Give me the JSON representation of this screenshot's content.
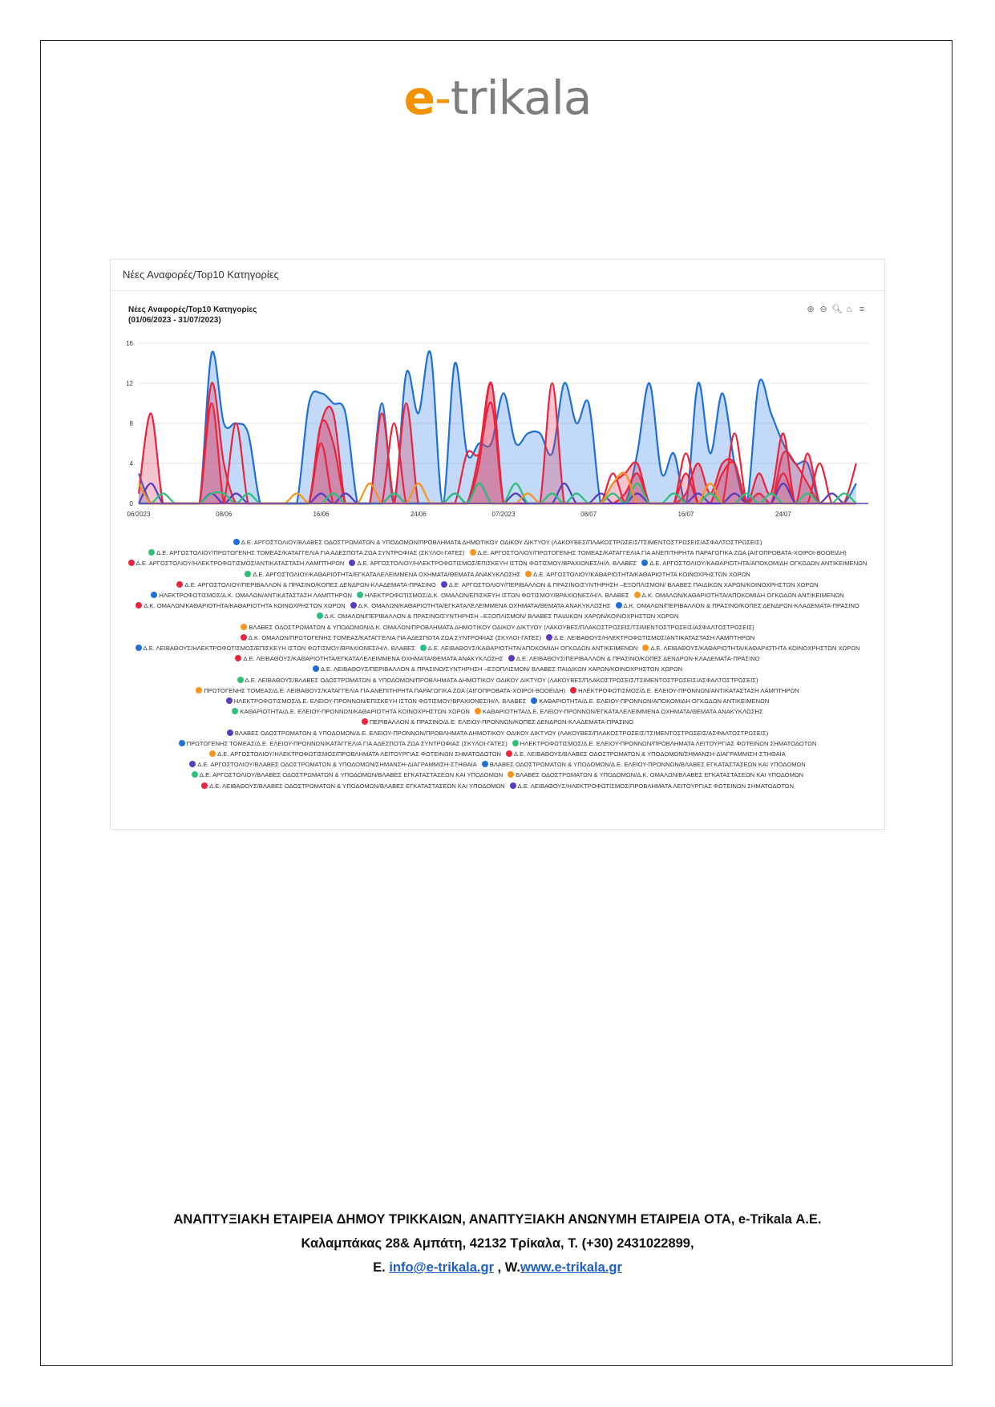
{
  "logo": {
    "e": "e",
    "dash": "-",
    "rest": "trikala"
  },
  "card": {
    "header": "Νέες Αναφορές/Top10 Κατηγορίες"
  },
  "chart_title": {
    "line1": "Νέες Αναφορές/Top10 Κατηγορίες",
    "line2": "(01/06/2023 - 31/07/2023)"
  },
  "toolbar": [
    "zoom-in-icon",
    "zoom-out-icon",
    "zoom-select-icon",
    "home-icon",
    "menu-icon"
  ],
  "colors": {
    "blue": "#1f6fd6",
    "red": "#e8253d",
    "green": "#2ec07a",
    "orange": "#f7941d",
    "purple": "#5b3bbf"
  },
  "chart_data": {
    "type": "area",
    "title": "Νέες Αναφορές/Top10 Κατηγορίες",
    "subtitle": "(01/06/2023 - 31/07/2023)",
    "ylim": [
      0,
      16
    ],
    "yticks": [
      "0",
      "4",
      "8",
      "12",
      "16"
    ],
    "xtick_labels": [
      {
        "day": 0,
        "label": "06/2023"
      },
      {
        "day": 7,
        "label": "08/06"
      },
      {
        "day": 15,
        "label": "16/06"
      },
      {
        "day": 23,
        "label": "24/06"
      },
      {
        "day": 30,
        "label": "07/2023"
      },
      {
        "day": 37,
        "label": "08/07"
      },
      {
        "day": 45,
        "label": "16/07"
      },
      {
        "day": 53,
        "label": "24/07"
      }
    ],
    "xlim_days": [
      0,
      60
    ],
    "grid": true,
    "legend_position": "bottom",
    "series": [
      {
        "color": "blue",
        "fill": true,
        "values": [
          3,
          0,
          0,
          0,
          0,
          0,
          15,
          8,
          8,
          7,
          0,
          0,
          0,
          0,
          10,
          11,
          10,
          9,
          0,
          0,
          10,
          0,
          13,
          9,
          15,
          0,
          14,
          5,
          6,
          6,
          11,
          6,
          7,
          7,
          5,
          12,
          8,
          10,
          0,
          0,
          0,
          5,
          12,
          3,
          5,
          0,
          12,
          5,
          11,
          4,
          0,
          12,
          9,
          6,
          4,
          4,
          0,
          0,
          0,
          2
        ]
      },
      {
        "color": "red",
        "fill": true,
        "values": [
          1,
          9,
          0,
          0,
          0,
          0,
          12,
          4,
          0,
          0,
          0,
          0,
          0,
          0,
          0,
          8,
          9,
          0,
          0,
          0,
          0,
          0,
          10,
          0,
          0,
          0,
          0,
          0,
          5,
          12,
          0,
          0,
          0,
          0,
          12,
          0,
          0,
          0,
          0,
          2,
          3,
          4,
          0,
          0,
          0,
          1,
          4,
          1,
          4,
          4,
          0,
          1,
          0,
          5,
          4,
          2,
          0,
          0,
          0,
          0
        ]
      },
      {
        "color": "red",
        "fill": true,
        "values": [
          0,
          0,
          0,
          0,
          0,
          0,
          10,
          0,
          0,
          0,
          0,
          0,
          0,
          0,
          0,
          8,
          6,
          0,
          0,
          0,
          9,
          0,
          0,
          0,
          0,
          0,
          0,
          0,
          4,
          12,
          0,
          0,
          0,
          0,
          0,
          0,
          0,
          0,
          0,
          0,
          1,
          3,
          0,
          0,
          0,
          3,
          0,
          0,
          3,
          4,
          0,
          3,
          1,
          7,
          0,
          5,
          0,
          0,
          0,
          0
        ]
      },
      {
        "color": "red",
        "fill": false,
        "values": [
          0,
          0,
          0,
          0,
          0,
          0,
          0,
          0,
          8,
          0,
          0,
          0,
          0,
          0,
          0,
          6,
          0,
          0,
          0,
          0,
          0,
          8,
          0,
          0,
          0,
          0,
          0,
          5,
          5,
          10,
          0,
          0,
          0,
          0,
          0,
          0,
          0,
          0,
          0,
          3,
          0,
          0,
          0,
          0,
          0,
          5,
          0,
          0,
          0,
          7,
          0,
          0,
          0,
          3,
          0,
          0,
          4,
          0,
          0,
          4
        ]
      },
      {
        "color": "purple",
        "fill": false,
        "values": [
          0,
          2,
          0,
          0,
          0,
          0,
          1,
          0,
          1,
          0,
          0,
          0,
          0,
          0,
          0,
          1,
          0,
          1,
          0,
          0,
          0,
          1,
          0,
          0,
          0,
          0,
          1,
          0,
          2,
          0,
          0,
          1,
          0,
          0,
          0,
          2,
          0,
          0,
          1,
          0,
          0,
          1,
          0,
          0,
          0,
          0,
          1,
          0,
          0,
          1,
          0,
          0,
          0,
          2,
          0,
          0,
          0,
          1,
          0,
          0
        ]
      },
      {
        "color": "green",
        "fill": false,
        "values": [
          0,
          0,
          1,
          0,
          0,
          0,
          1,
          1,
          0,
          1,
          0,
          0,
          0,
          0,
          0,
          0,
          1,
          0,
          0,
          0,
          0,
          1,
          0,
          0,
          0,
          0,
          1,
          0,
          2,
          0,
          0,
          2,
          0,
          0,
          1,
          0,
          1,
          0,
          0,
          1,
          0,
          2,
          0,
          0,
          1,
          0,
          0,
          1,
          0,
          0,
          1,
          0,
          1,
          0,
          0,
          1,
          0,
          0,
          1,
          0
        ]
      },
      {
        "color": "orange",
        "fill": false,
        "values": [
          2,
          0,
          0,
          0,
          0,
          0,
          0,
          0,
          0,
          0,
          0,
          0,
          0,
          1,
          0,
          0,
          0,
          0,
          0,
          2,
          0,
          0,
          0,
          2,
          0,
          0,
          0,
          0,
          0,
          0,
          0,
          0,
          1,
          0,
          0,
          0,
          0,
          0,
          0,
          2,
          3,
          0,
          0,
          0,
          0,
          0,
          0,
          2,
          0,
          0,
          0,
          0,
          0,
          0,
          0,
          0,
          0,
          0,
          0,
          0
        ]
      }
    ],
    "legend_entries": [
      {
        "color": "blue",
        "label": "Δ.Ε. ΑΡΓΟΣΤΟΛΙΟΥ/ΒΛΑΒΕΣ ΟΔΟΣΤΡΩΜΑΤΩΝ & ΥΠΟΔΟΜΩΝ/ΠΡΟΒΛΗΜΑΤΑ ΔΗΜΟΤΙΚΟΥ ΟΔΙΚΟΥ ΔΙΚΤΥΟΥ (ΛΑΚΟΥΒΕΣ/ΠΛΑΚΟΣΤΡΩΣΕΙΣ/ΤΣΙΜΕΝΤΟΣΤΡΩΣΕΙΣ/ΑΣΦΑΛΤΟΣΤΡΩΣΕΙΣ)"
      },
      {
        "color": "green",
        "label": "Δ.Ε. ΑΡΓΟΣΤΟΛΙΟΥ/ΠΡΩΤΟΓΕΝΗΣ ΤΟΜΕΑΣ/ΚΑΤΑΓΓΕΛΙΑ ΓΙΑ ΑΔΕΣΠΟΤΑ ΖΩΑ ΣΥΝΤΡΟΦΙΑΣ (ΣΚΥΛΟΙ-ΓΑΤΕΣ)"
      },
      {
        "color": "orange",
        "label": "Δ.Ε. ΑΡΓΟΣΤΟΛΙΟΥ/ΠΡΩΤΟΓΕΝΗΣ ΤΟΜΕΑΣ/ΚΑΤΑΓΓΕΛΙΑ ΓΙΑ ΑΝΕΠΙΤΗΡΗΤΑ ΠΑΡΑΓΩΓΙΚΑ ΖΩΑ (ΑΙΓΟΠΡΟΒΑΤΑ-ΧΟΙΡΟΙ-ΒΟΟΕΙΔΗ)"
      },
      {
        "color": "red",
        "label": "Δ.Ε. ΑΡΓΟΣΤΟΛΙΟΥ/ΗΛΕΚΤΡΟΦΩΤΙΣΜΟΣ/ΑΝΤΙΚΑΤΑΣΤΑΣΗ ΛΑΜΠΤΗΡΩΝ"
      },
      {
        "color": "purple",
        "label": "Δ.Ε. ΑΡΓΟΣΤΟΛΙΟΥ/ΗΛΕΚΤΡΟΦΩΤΙΣΜΟΣ/ΕΠΙΣΚΕΥΗ ΙΣΤΩΝ ΦΩΤΙΣΜΟΥ/ΒΡΑΧΙΟΝΕΣ/Η/Λ. ΒΛΑΒΕΣ"
      },
      {
        "color": "blue",
        "label": "Δ.Ε. ΑΡΓΟΣΤΟΛΙΟΥ/ΚΑΘΑΡΙΟΤΗΤΑ/ΑΠΟΚΟΜΙΔΗ ΟΓΚΩΔΩΝ ΑΝΤΙΚΕΙΜΕΝΩΝ"
      },
      {
        "color": "green",
        "label": "Δ.Ε. ΑΡΓΟΣΤΟΛΙΟΥ/ΚΑΘΑΡΙΟΤΗΤΑ/ΕΓΚΑΤΑΛΕΛΕΙΜΜΕΝΑ ΟΧΗΜΑΤΑ/ΘΕΜΑΤΑ ΑΝΑΚΥΚΛΩΣΗΣ"
      },
      {
        "color": "orange",
        "label": "Δ.Ε. ΑΡΓΟΣΤΟΛΙΟΥ/ΚΑΘΑΡΙΟΤΗΤΑ/ΚΑΘΑΡΙΟΤΗΤΑ ΚΟΙΝΟΧΡΗΣΤΩΝ ΧΩΡΩΝ"
      },
      {
        "color": "red",
        "label": "Δ.Ε. ΑΡΓΟΣΤΟΛΙΟΥ/ΠΕΡΙΒΑΛΛΟΝ & ΠΡΑΣΙΝΟ/ΚΟΠΕΣ ΔΕΝΔΡΩΝ-ΚΛΑΔΕΜΑΤΑ-ΠΡΑΣΙΝΟ"
      },
      {
        "color": "purple",
        "label": "Δ.Ε. ΑΡΓΟΣΤΟΛΙΟΥ/ΠΕΡΙΒΑΛΛΟΝ & ΠΡΑΣΙΝΟ/ΣΥΝΤΗΡΗΣΗ –ΕΞΟΠΛΙΣΜΟΝ/ ΒΛΑΒΕΣ ΠΑΙΔΙΚΩΝ ΧΑΡΩΝ/ΚΟΙΝΟΧΡΗΣΤΩΝ ΧΩΡΩΝ"
      },
      {
        "color": "blue",
        "label": "ΗΛΕΚΤΡΟΦΩΤΙΣΜΟΣ/Δ.Κ. ΟΜΑΛΩΝ/ΑΝΤΙΚΑΤΑΣΤΑΣΗ ΛΑΜΠΤΗΡΩΝ"
      },
      {
        "color": "green",
        "label": "ΗΛΕΚΤΡΟΦΩΤΙΣΜΟΣ/Δ.Κ. ΟΜΑΛΩΝ/ΕΠΙΣΚΕΥΗ ΙΣΤΩΝ ΦΩΤΙΣΜΟΥ/ΒΡΑΧΙΟΝΕΣ/Η/Λ. ΒΛΑΒΕΣ"
      },
      {
        "color": "orange",
        "label": "Δ.Κ. ΟΜΑΛΩΝ/ΚΑΘΑΡΙΟΤΗΤΑ/ΑΠΟΚΟΜΙΔΗ ΟΓΚΩΔΩΝ ΑΝΤΙΚΕΙΜΕΝΩΝ"
      },
      {
        "color": "red",
        "label": "Δ.Κ. ΟΜΑΛΩΝ/ΚΑΘΑΡΙΟΤΗΤΑ/ΚΑΘΑΡΙΟΤΗΤΑ ΚΟΙΝΟΧΡΗΣΤΩΝ ΧΩΡΩΝ"
      },
      {
        "color": "purple",
        "label": "Δ.Κ. ΟΜΑΛΩΝ/ΚΑΘΑΡΙΟΤΗΤΑ/ΕΓΚΑΤΑΛΕΛΕΙΜΜΕΝΑ ΟΧΗΜΑΤΑ/ΘΕΜΑΤΑ ΑΝΑΚΥΚΛΩΣΗΣ"
      },
      {
        "color": "blue",
        "label": "Δ.Κ. ΟΜΑΛΩΝ/ΠΕΡΙΒΑΛΛΟΝ & ΠΡΑΣΙΝΟ/ΚΟΠΕΣ ΔΕΝΔΡΩΝ-ΚΛΑΔΕΜΑΤΑ-ΠΡΑΣΙΝΟ"
      },
      {
        "color": "green",
        "label": "Δ.Κ. ΟΜΑΛΩΝ/ΠΕΡΙΒΑΛΛΟΝ & ΠΡΑΣΙΝΟ/ΣΥΝΤΗΡΗΣΗ –ΕΞΟΠΛΙΣΜΟΝ/ ΒΛΑΒΕΣ ΠΑΙΔΙΚΩΝ ΧΑΡΩΝ/ΚΟΙΝΟΧΡΗΣΤΩΝ ΧΩΡΩΝ"
      },
      {
        "color": "orange",
        "label": "ΒΛΑΒΕΣ ΟΔΟΣΤΡΩΜΑΤΩΝ & ΥΠΟΔΟΜΩΝ/Δ.Κ. ΟΜΑΛΩΝ/ΠΡΟΒΛΗΜΑΤΑ ΔΗΜΟΤΙΚΟΥ ΟΔΙΚΟΥ ΔΙΚΤΥΟΥ (ΛΑΚΟΥΒΕΣ/ΠΛΑΚΟΣΤΡΩΣΕΙΣ/ΤΣΙΜΕΝΤΟΣΤΡΩΣΕΙΣ/ΑΣΦΑΛΤΟΣΤΡΩΣΕΙΣ)"
      },
      {
        "color": "red",
        "label": "Δ.Κ. ΟΜΑΛΩΝ/ΠΡΩΤΟΓΕΝΗΣ ΤΟΜΕΑΣ/ΚΑΤΑΓΓΕΛΙΑ ΓΙΑ ΑΔΕΣΠΟΤΑ ΖΩΑ ΣΥΝΤΡΟΦΙΑΣ (ΣΚΥΛΟΙ-ΓΑΤΕΣ)"
      },
      {
        "color": "purple",
        "label": "Δ.Ε. ΛΕΙΒΑΘΟΥΣ/ΗΛΕΚΤΡΟΦΩΤΙΣΜΟΣ/ΑΝΤΙΚΑΤΑΣΤΑΣΗ ΛΑΜΠΤΗΡΩΝ"
      },
      {
        "color": "blue",
        "label": "Δ.Ε. ΛΕΙΒΑΘΟΥΣ/ΗΛΕΚΤΡΟΦΩΤΙΣΜΟΣ/ΕΠΙΣΚΕΥΗ ΙΣΤΩΝ ΦΩΤΙΣΜΟΥ/ΒΡΑΧΙΟΝΕΣ/Η/Λ. ΒΛΑΒΕΣ"
      },
      {
        "color": "green",
        "label": "Δ.Ε. ΛΕΙΒΑΘΟΥΣ/ΚΑΘΑΡΙΟΤΗΤΑ/ΑΠΟΚΟΜΙΔΗ ΟΓΚΩΔΩΝ ΑΝΤΙΚΕΙΜΕΝΩΝ"
      },
      {
        "color": "orange",
        "label": "Δ.Ε. ΛΕΙΒΑΘΟΥΣ/ΚΑΘΑΡΙΟΤΗΤΑ/ΚΑΘΑΡΙΟΤΗΤΑ ΚΟΙΝΟΧΡΗΣΤΩΝ ΧΩΡΩΝ"
      },
      {
        "color": "red",
        "label": "Δ.Ε. ΛΕΙΒΑΘΟΥΣ/ΚΑΘΑΡΙΟΤΗΤΑ/ΕΓΚΑΤΑΛΕΛΕΙΜΜΕΝΑ ΟΧΗΜΑΤΑ/ΘΕΜΑΤΑ ΑΝΑΚΥΚΛΩΣΗΣ"
      },
      {
        "color": "purple",
        "label": "Δ.Ε. ΛΕΙΒΑΘΟΥΣ/ΠΕΡΙΒΑΛΛΟΝ & ΠΡΑΣΙΝΟ/ΚΟΠΕΣ ΔΕΝΔΡΩΝ-ΚΛΑΔΕΜΑΤΑ-ΠΡΑΣΙΝΟ"
      },
      {
        "color": "blue",
        "label": "Δ.Ε. ΛΕΙΒΑΘΟΥΣ/ΠΕΡΙΒΑΛΛΟΝ & ΠΡΑΣΙΝΟ/ΣΥΝΤΗΡΗΣΗ –ΕΞΟΠΛΙΣΜΟΝ/ ΒΛΑΒΕΣ ΠΑΙΔΙΚΩΝ ΧΑΡΩΝ/ΚΟΙΝΟΧΡΗΣΤΩΝ ΧΩΡΩΝ"
      },
      {
        "color": "green",
        "label": "Δ.Ε. ΛΕΙΒΑΘΟΥΣ/ΒΛΑΒΕΣ ΟΔΟΣΤΡΩΜΑΤΩΝ & ΥΠΟΔΟΜΩΝ/ΠΡΟΒΛΗΜΑΤΑ ΔΗΜΟΤΙΚΟΥ ΟΔΙΚΟΥ ΔΙΚΤΥΟΥ (ΛΑΚΟΥΒΕΣ/ΠΛΑΚΟΣΤΡΩΣΕΙΣ/ΤΣΙΜΕΝΤΟΣΤΡΩΣΕΙΣ/ΑΣΦΑΛΤΟΣΤΡΩΣΕΙΣ)"
      },
      {
        "color": "orange",
        "label": "ΠΡΩΤΟΓΕΝΗΣ ΤΟΜΕΑΣ/Δ.Ε. ΛΕΙΒΑΘΟΥΣ/ΚΑΤΑΓΓΕΛΙΑ ΓΙΑ ΑΝΕΠΙΤΗΡΗΤΑ ΠΑΡΑΓΩΓΙΚΑ ΖΩΑ (ΑΙΓΟΠΡΟΒΑΤΑ-ΧΟΙΡΟΙ-ΒΟΟΕΙΔΗ)"
      },
      {
        "color": "red",
        "label": "ΗΛΕΚΤΡΟΦΩΤΙΣΜΟΣ/Δ.Ε. ΕΛΕΙΟΥ-ΠΡΟΝΝΩΝ/ΑΝΤΙΚΑΤΑΣΤΑΣΗ ΛΑΜΠΤΗΡΩΝ"
      },
      {
        "color": "purple",
        "label": "ΗΛΕΚΤΡΟΦΩΤΙΣΜΟΣ/Δ.Ε. ΕΛΕΙΟΥ-ΠΡΟΝΝΩΝ/ΕΠΙΣΚΕΥΗ ΙΣΤΩΝ ΦΩΤΙΣΜΟΥ/ΒΡΑΧΙΟΝΕΣ/Η/Λ. ΒΛΑΒΕΣ"
      },
      {
        "color": "blue",
        "label": "ΚΑΘΑΡΙΟΤΗΤΑ/Δ.Ε. ΕΛΕΙΟΥ-ΠΡΟΝΝΩΝ/ΑΠΟΚΟΜΙΔΗ ΟΓΚΩΔΩΝ ΑΝΤΙΚΕΙΜΕΝΩΝ"
      },
      {
        "color": "green",
        "label": "ΚΑΘΑΡΙΟΤΗΤΑ/Δ.Ε. ΕΛΕΙΟΥ-ΠΡΟΝΝΩΝ/ΚΑΘΑΡΙΟΤΗΤΑ ΚΟΙΝΟΧΡΗΣΤΩΝ ΧΩΡΩΝ"
      },
      {
        "color": "orange",
        "label": "ΚΑΘΑΡΙΟΤΗΤΑ/Δ.Ε. ΕΛΕΙΟΥ-ΠΡΟΝΝΩΝ/ΕΓΚΑΤΑΛΕΛΕΙΜΜΕΝΑ ΟΧΗΜΑΤΑ/ΘΕΜΑΤΑ ΑΝΑΚΥΚΛΩΣΗΣ"
      },
      {
        "color": "red",
        "label": "ΠΕΡΙΒΑΛΛΟΝ & ΠΡΑΣΙΝΟ/Δ.Ε. ΕΛΕΙΟΥ-ΠΡΟΝΝΩΝ/ΚΟΠΕΣ ΔΕΝΔΡΩΝ-ΚΛΑΔΕΜΑΤΑ-ΠΡΑΣΙΝΟ"
      },
      {
        "color": "purple",
        "label": "ΒΛΑΒΕΣ ΟΔΟΣΤΡΩΜΑΤΩΝ & ΥΠΟΔΟΜΩΝ/Δ.Ε. ΕΛΕΙΟΥ-ΠΡΟΝΝΩΝ/ΠΡΟΒΛΗΜΑΤΑ ΔΗΜΟΤΙΚΟΥ ΟΔΙΚΟΥ ΔΙΚΤΥΟΥ (ΛΑΚΟΥΒΕΣ/ΠΛΑΚΟΣΤΡΩΣΕΙΣ/ΤΣΙΜΕΝΤΟΣΤΡΩΣΕΙΣ/ΑΣΦΑΛΤΟΣΤΡΩΣΕΙΣ)"
      },
      {
        "color": "blue",
        "label": "ΠΡΩΤΟΓΕΝΗΣ ΤΟΜΕΑΣ/Δ.Ε. ΕΛΕΙΟΥ-ΠΡΟΝΝΩΝ/ΚΑΤΑΓΓΕΛΙΑ ΓΙΑ ΑΔΕΣΠΟΤΑ ΖΩΑ ΣΥΝΤΡΟΦΙΑΣ (ΣΚΥΛΟΙ-ΓΑΤΕΣ)"
      },
      {
        "color": "green",
        "label": "ΗΛΕΚΤΡΟΦΩΤΙΣΜΟΣ/Δ.Ε. ΕΛΕΙΟΥ-ΠΡΟΝΝΩΝ/ΠΡΟΒΛΗΜΑΤΑ ΛΕΙΤΟΥΡΓΙΑΣ ΦΩΤΕΙΝΩΝ ΣΗΜΑΤΟΔΟΤΩΝ"
      },
      {
        "color": "orange",
        "label": "Δ.Ε. ΑΡΓΟΣΤΟΛΙΟΥ/ΗΛΕΚΤΡΟΦΩΤΙΣΜΟΣ/ΠΡΟΒΛΗΜΑΤΑ ΛΕΙΤΟΥΡΓΙΑΣ ΦΩΤΕΙΝΩΝ ΣΗΜΑΤΟΔΟΤΩΝ"
      },
      {
        "color": "red",
        "label": "Δ.Ε. ΛΕΙΒΑΘΟΥΣ/ΒΛΑΒΕΣ ΟΔΟΣΤΡΩΜΑΤΩΝ & ΥΠΟΔΟΜΩΝ/ΣΗΜΑΝΣΗ-ΔΙΑΓΡΑΜΜΙΣΗ-ΣΤΗΘΑΙΑ"
      },
      {
        "color": "purple",
        "label": "Δ.Ε. ΑΡΓΟΣΤΟΛΙΟΥ/ΒΛΑΒΕΣ ΟΔΟΣΤΡΩΜΑΤΩΝ & ΥΠΟΔΟΜΩΝ/ΣΗΜΑΝΣΗ-ΔΙΑΓΡΑΜΜΙΣΗ-ΣΤΗΘΑΙΑ"
      },
      {
        "color": "blue",
        "label": "ΒΛΑΒΕΣ ΟΔΟΣΤΡΩΜΑΤΩΝ & ΥΠΟΔΟΜΩΝ/Δ.Ε. ΕΛΕΙΟΥ-ΠΡΟΝΝΩΝ/ΒΛΑΒΕΣ ΕΓΚΑΤΑΣΤΑΣΕΩΝ ΚΑΙ ΥΠΟΔΟΜΩΝ"
      },
      {
        "color": "green",
        "label": "Δ.Ε. ΑΡΓΟΣΤΟΛΙΟΥ/ΒΛΑΒΕΣ ΟΔΟΣΤΡΩΜΑΤΩΝ & ΥΠΟΔΟΜΩΝ/ΒΛΑΒΕΣ ΕΓΚΑΤΑΣΤΑΣΕΩΝ ΚΑΙ ΥΠΟΔΟΜΩΝ"
      },
      {
        "color": "orange",
        "label": "ΒΛΑΒΕΣ ΟΔΟΣΤΡΩΜΑΤΩΝ & ΥΠΟΔΟΜΩΝ/Δ.Κ. ΟΜΑΛΩΝ/ΒΛΑΒΕΣ ΕΓΚΑΤΑΣΤΑΣΕΩΝ ΚΑΙ ΥΠΟΔΟΜΩΝ"
      },
      {
        "color": "red",
        "label": "Δ.Ε. ΛΕΙΒΑΘΟΥΣ/ΒΛΑΒΕΣ ΟΔΟΣΤΡΩΜΑΤΩΝ & ΥΠΟΔΟΜΩΝ/ΒΛΑΒΕΣ ΕΓΚΑΤΑΣΤΑΣΕΩΝ ΚΑΙ ΥΠΟΔΟΜΩΝ"
      },
      {
        "color": "purple",
        "label": "Δ.Ε. ΛΕΙΒΑΘΟΥΣ/ΗΛΕΚΤΡΟΦΩΤΙΣΜΟΣ/ΠΡΟΒΛΗΜΑΤΑ ΛΕΙΤΟΥΡΓΙΑΣ ΦΩΤΕΙΝΩΝ ΣΗΜΑΤΟΔΟΤΩΝ"
      }
    ]
  },
  "footer": {
    "line1": "ΑΝΑΠΤΥΞΙΑΚΗ ΕΤΑΙΡΕΙΑ ΔΗΜΟΥ ΤΡΙΚΚΑΙΩΝ, ΑΝΑΠΤΥΞΙΑΚΗ ΑΝΩΝΥΜΗ ΕΤΑΙΡΕΙΑ ΟΤΑ,  e-Trikala Α.Ε.",
    "line2": "Καλαμπάκας 28& Αμπάτη, 42132 Τρίκαλα, Τ. (+30) 2431022899,",
    "email_prefix": "Ε. ",
    "email": "info@e-trikala.gr",
    "sep": " , W.",
    "web": "www.e-trikala.gr"
  }
}
